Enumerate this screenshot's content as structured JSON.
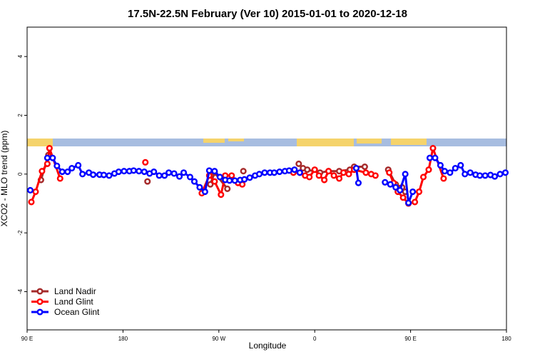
{
  "chart_data": {
    "type": "line",
    "title": "17.5N-22.5N February (Ver 10)   2015-01-01 to 2020-12-18",
    "x_label": "Longitude",
    "y_label": "XCO2 - MLO trend (ppm)",
    "xlim": [
      90,
      540
    ],
    "ylim": [
      -5.3,
      5
    ],
    "xticks": [
      {
        "value": 90,
        "label": "90 E"
      },
      {
        "value": 180,
        "label": "180"
      },
      {
        "value": 270,
        "label": "90 W"
      },
      {
        "value": 360,
        "label": "0"
      },
      {
        "value": 450,
        "label": "90 E"
      },
      {
        "value": 540,
        "label": "180"
      }
    ],
    "yticks": [
      -4,
      -2,
      0,
      2,
      4
    ],
    "legend": "bottom-left",
    "series": [
      {
        "name": "Land Nadir",
        "color": "#a52a2a",
        "x": [
          103,
          110,
          203,
          262,
          266,
          278,
          293,
          345,
          349,
          353,
          365,
          373,
          383,
          393,
          397,
          407,
          429,
          436,
          442,
          445
        ],
        "values": [
          -0.2,
          0.65,
          -0.25,
          -0.35,
          0.05,
          -0.5,
          0.1,
          0.35,
          0.2,
          0.15,
          0.05,
          0.1,
          0.1,
          0.15,
          0.25,
          0.25,
          0.15,
          -0.35,
          -0.45,
          -0.6
        ]
      },
      {
        "name": "Land Glint",
        "color": "#ff0000",
        "x": [
          94,
          98,
          104,
          109,
          111,
          121,
          201,
          254,
          261,
          266,
          272,
          276,
          282,
          288,
          292,
          340,
          346,
          351,
          355,
          360,
          364,
          369,
          373,
          378,
          383,
          387,
          392,
          397,
          408,
          413,
          417,
          430,
          434,
          438,
          443,
          448,
          454,
          458,
          462,
          467,
          471,
          481
        ],
        "values": [
          -0.95,
          -0.6,
          0.1,
          0.35,
          0.88,
          -0.15,
          0.4,
          -0.65,
          -0.05,
          -0.25,
          -0.7,
          -0.05,
          -0.05,
          -0.3,
          -0.35,
          0.05,
          0.05,
          -0.05,
          -0.1,
          0.15,
          -0.05,
          -0.2,
          0.1,
          -0.05,
          -0.15,
          0.05,
          0,
          0.15,
          0.05,
          0,
          -0.05,
          0.05,
          -0.3,
          -0.6,
          -0.8,
          -1.0,
          -0.95,
          -0.6,
          -0.1,
          0.15,
          0.88,
          -0.15
        ]
      },
      {
        "name": "Ocean Glint",
        "color": "#0000ff",
        "x": [
          93,
          109,
          114,
          118,
          123,
          128,
          132,
          138,
          142,
          148,
          152,
          158,
          162,
          167,
          172,
          176,
          181,
          186,
          190,
          195,
          200,
          205,
          209,
          214,
          219,
          223,
          228,
          233,
          237,
          243,
          247,
          252,
          257,
          261,
          266,
          271,
          276,
          280,
          285,
          290,
          294,
          299,
          304,
          308,
          313,
          318,
          322,
          327,
          332,
          336,
          341,
          346,
          399,
          401,
          426,
          431,
          436,
          440,
          445,
          448,
          452,
          468,
          473,
          478,
          482,
          487,
          492,
          497,
          501,
          506,
          511,
          515,
          520,
          525,
          529,
          534,
          539
        ],
        "values": [
          -0.55,
          0.55,
          0.55,
          0.28,
          0.08,
          0.08,
          0.2,
          0.3,
          0,
          0.05,
          -0.02,
          -0.02,
          -0.03,
          -0.05,
          0.02,
          0.08,
          0.1,
          0.1,
          0.12,
          0.1,
          0.08,
          0.02,
          0.08,
          -0.05,
          -0.05,
          0.05,
          0.02,
          -0.08,
          0.05,
          -0.1,
          -0.25,
          -0.45,
          -0.6,
          0.12,
          0.1,
          -0.1,
          -0.2,
          -0.22,
          -0.22,
          -0.2,
          -0.18,
          -0.12,
          -0.05,
          0,
          0.05,
          0.05,
          0.05,
          0.08,
          0.1,
          0.12,
          0.15,
          0.05,
          0.2,
          -0.3,
          -0.28,
          -0.35,
          -0.45,
          -0.55,
          0,
          -0.98,
          -0.6,
          0.55,
          0.55,
          0.3,
          0.1,
          0.05,
          0.2,
          0.3,
          0,
          0.05,
          -0.02,
          -0.05,
          -0.05,
          -0.03,
          -0.08,
          0,
          0.05
        ]
      }
    ]
  }
}
